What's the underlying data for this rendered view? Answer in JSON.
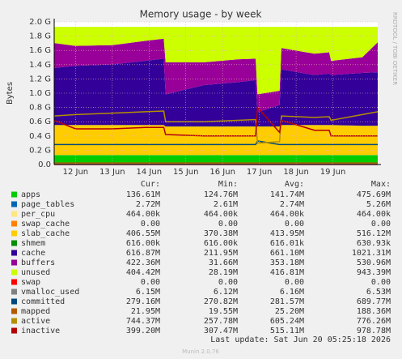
{
  "chart_data": {
    "type": "area",
    "title": "Memory usage - by week",
    "y_label": "Bytes",
    "side_label": "RRDTOOL / TOBI OETIKER",
    "footer": "Last update: Sat Jun 20 05:25:18 2026",
    "version": "Munin 2.0.76",
    "stat_headers": [
      "Cur:",
      "Min:",
      "Avg:",
      "Max:"
    ],
    "grid": true,
    "xlim": [
      11.42,
      20.22
    ],
    "xticks": [
      {
        "value": 12,
        "label": "12 Jun"
      },
      {
        "value": 13,
        "label": "13 Jun"
      },
      {
        "value": 14,
        "label": "14 Jun"
      },
      {
        "value": 15,
        "label": "15 Jun"
      },
      {
        "value": 16,
        "label": "16 Jun"
      },
      {
        "value": 17,
        "label": "17 Jun"
      },
      {
        "value": 18,
        "label": "18 Jun"
      },
      {
        "value": 19,
        "label": "19 Jun"
      }
    ],
    "ylim": [
      0,
      2000000000
    ],
    "yticks": [
      {
        "value": 0,
        "label": "0.0"
      },
      {
        "value": 200000000,
        "label": "0.2 G"
      },
      {
        "value": 400000000,
        "label": "0.4 G"
      },
      {
        "value": 600000000,
        "label": "0.6 G"
      },
      {
        "value": 800000000,
        "label": "0.8 G"
      },
      {
        "value": 1000000000,
        "label": "1.0 G"
      },
      {
        "value": 1200000000,
        "label": "1.2 G"
      },
      {
        "value": 1400000000,
        "label": "1.4 G"
      },
      {
        "value": 1600000000,
        "label": "1.6 G"
      },
      {
        "value": 1800000000,
        "label": "1.8 G"
      },
      {
        "value": 2000000000,
        "label": "2.0 G"
      }
    ],
    "x": [
      11.42,
      12.0,
      13.0,
      13.9,
      14.4,
      14.45,
      15.5,
      16.4,
      16.9,
      16.95,
      17.55,
      17.6,
      18.5,
      18.9,
      18.95,
      19.8,
      20.22
    ],
    "series": [
      {
        "name": "apps",
        "color": "#00cc00",
        "style": "area",
        "stats": [
          "136.61M",
          "124.76M",
          "141.74M",
          "475.69M"
        ],
        "values": [
          130000000,
          130000000,
          130000000,
          130000000,
          130000000,
          130000000,
          130000000,
          130000000,
          130000000,
          130000000,
          130000000,
          130000000,
          130000000,
          130000000,
          130000000,
          130000000,
          130000000
        ]
      },
      {
        "name": "page_tables",
        "color": "#0066b3",
        "style": "area",
        "stats": [
          "2.72M",
          "2.61M",
          "2.74M",
          "5.26M"
        ],
        "values": [
          2700000,
          2700000,
          2700000,
          2700000,
          2700000,
          2700000,
          2700000,
          2700000,
          2700000,
          2700000,
          2700000,
          2700000,
          2700000,
          2700000,
          2700000,
          2700000,
          2700000
        ]
      },
      {
        "name": "per_cpu",
        "color": "#ffe680",
        "style": "area",
        "stats": [
          "464.00k",
          "464.00k",
          "464.00k",
          "464.00k"
        ],
        "values": [
          464000,
          464000,
          464000,
          464000,
          464000,
          464000,
          464000,
          464000,
          464000,
          464000,
          464000,
          464000,
          464000,
          464000,
          464000,
          464000,
          464000
        ]
      },
      {
        "name": "swap_cache",
        "color": "#ff8000",
        "style": "area",
        "stats": [
          "0.00",
          "0.00",
          "0.00",
          "0.00"
        ],
        "values": [
          0,
          0,
          0,
          0,
          0,
          0,
          0,
          0,
          0,
          0,
          0,
          0,
          0,
          0,
          0,
          0,
          0
        ]
      },
      {
        "name": "slab_cache",
        "color": "#ffcc00",
        "style": "area",
        "stats": [
          "406.55M",
          "370.38M",
          "413.95M",
          "516.12M"
        ],
        "values": [
          420000000,
          420000000,
          420000000,
          420000000,
          420000000,
          400000000,
          400000000,
          400000000,
          400000000,
          400000000,
          400000000,
          420000000,
          420000000,
          420000000,
          420000000,
          410000000,
          410000000
        ]
      },
      {
        "name": "shmem",
        "color": "#008f00",
        "style": "area",
        "stats": [
          "616.00k",
          "616.00k",
          "616.01k",
          "630.93k"
        ],
        "values": [
          616000,
          616000,
          616000,
          616000,
          616000,
          616000,
          616000,
          616000,
          616000,
          616000,
          616000,
          616000,
          616000,
          616000,
          616000,
          616000,
          616000
        ]
      },
      {
        "name": "cache",
        "color": "#330099",
        "style": "area",
        "stats": [
          "616.87M",
          "211.95M",
          "661.10M",
          "1021.31M"
        ],
        "values": [
          800000000,
          830000000,
          850000000,
          900000000,
          930000000,
          450000000,
          580000000,
          620000000,
          650000000,
          200000000,
          300000000,
          780000000,
          700000000,
          720000000,
          700000000,
          740000000,
          750000000
        ]
      },
      {
        "name": "buffers",
        "color": "#990099",
        "style": "area",
        "stats": [
          "422.36M",
          "31.66M",
          "353.18M",
          "530.96M"
        ],
        "values": [
          350000000,
          280000000,
          270000000,
          280000000,
          280000000,
          450000000,
          320000000,
          320000000,
          300000000,
          250000000,
          200000000,
          300000000,
          300000000,
          300000000,
          200000000,
          220000000,
          420000000
        ]
      },
      {
        "name": "unused",
        "color": "#ccff00",
        "style": "area",
        "stats": [
          "404.42M",
          "28.19M",
          "416.81M",
          "943.39M"
        ],
        "values": [
          226500000,
          266500000,
          256500000,
          196500000,
          166500000,
          496500000,
          496500000,
          456500000,
          446500000,
          946500000,
          896500000,
          296500000,
          376500000,
          356500000,
          476500000,
          426500000,
          216500000
        ]
      },
      {
        "name": "swap",
        "color": "#ff0000",
        "style": "line",
        "stats": [
          "0.00",
          "0.00",
          "0.00",
          "0.00"
        ],
        "values": [
          0,
          0,
          0,
          0,
          0,
          0,
          0,
          0,
          0,
          0,
          0,
          0,
          0,
          0,
          0,
          0,
          0
        ]
      },
      {
        "name": "vmalloc_used",
        "color": "#808080",
        "style": "line",
        "stats": [
          "6.15M",
          "6.12M",
          "6.16M",
          "6.53M"
        ],
        "values": [
          6150000,
          6150000,
          6150000,
          6150000,
          6150000,
          6150000,
          6150000,
          6150000,
          6150000,
          6150000,
          6150000,
          6150000,
          6150000,
          6150000,
          6150000,
          6150000,
          6150000
        ]
      },
      {
        "name": "committed",
        "color": "#00487d",
        "style": "line",
        "stats": [
          "279.16M",
          "270.82M",
          "281.57M",
          "689.77M"
        ],
        "values": [
          280000000,
          280000000,
          280000000,
          280000000,
          280000000,
          280000000,
          280000000,
          280000000,
          280000000,
          330000000,
          280000000,
          280000000,
          280000000,
          280000000,
          280000000,
          280000000,
          280000000
        ]
      },
      {
        "name": "mapped",
        "color": "#b35a00",
        "style": "line",
        "stats": [
          "21.95M",
          "19.55M",
          "25.20M",
          "188.36M"
        ],
        "values": [
          22000000,
          22000000,
          22000000,
          22000000,
          22000000,
          22000000,
          22000000,
          22000000,
          22000000,
          22000000,
          22000000,
          22000000,
          22000000,
          22000000,
          22000000,
          22000000,
          22000000
        ]
      },
      {
        "name": "active",
        "color": "#b38f00",
        "style": "line",
        "stats": [
          "744.37M",
          "257.78M",
          "605.24M",
          "776.26M"
        ],
        "values": [
          680000000,
          700000000,
          720000000,
          740000000,
          750000000,
          600000000,
          600000000,
          620000000,
          630000000,
          300000000,
          320000000,
          680000000,
          660000000,
          670000000,
          620000000,
          700000000,
          740000000
        ]
      },
      {
        "name": "inactive",
        "color": "#b30000",
        "style": "line",
        "stats": [
          "399.20M",
          "307.47M",
          "515.11M",
          "978.78M"
        ],
        "values": [
          620000000,
          500000000,
          500000000,
          520000000,
          520000000,
          420000000,
          400000000,
          400000000,
          400000000,
          800000000,
          450000000,
          620000000,
          480000000,
          480000000,
          400000000,
          400000000,
          400000000
        ]
      }
    ]
  }
}
